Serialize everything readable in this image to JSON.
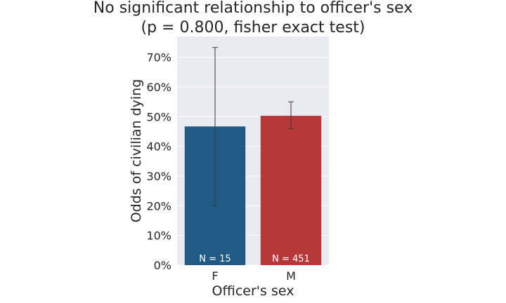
{
  "chart_data": {
    "type": "bar",
    "title": "No significant relationship to officer's sex",
    "subtitle": "(p = 0.800, fisher exact test)",
    "xlabel": "Officer's sex",
    "ylabel": "Odds of civilian dying",
    "categories": [
      "F",
      "M"
    ],
    "values": [
      0.467,
      0.503
    ],
    "error_low": [
      0.2,
      0.46
    ],
    "error_high": [
      0.733,
      0.55
    ],
    "annotations": [
      "N = 15",
      "N = 451"
    ],
    "colors": [
      "#1f5b85",
      "#b8383a"
    ],
    "ylim": [
      0,
      0.77
    ],
    "yticks": [
      0,
      0.1,
      0.2,
      0.3,
      0.4,
      0.5,
      0.6,
      0.7
    ],
    "ytick_labels": [
      "0%",
      "10%",
      "20%",
      "30%",
      "40%",
      "50%",
      "60%",
      "70%"
    ],
    "grid": true,
    "background": "#eaeaf2"
  }
}
